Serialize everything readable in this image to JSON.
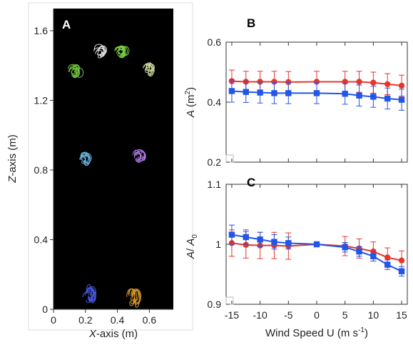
{
  "chart_data": [
    {
      "panel": "A",
      "type": "scatter",
      "xlabel_axis": "X",
      "xlabel_rest": "-axis (m)",
      "ylabel_axis": "Z",
      "ylabel_rest": "-axis (m)",
      "xlim": [
        0,
        0.7
      ],
      "ylim": [
        0,
        1.7
      ],
      "xticks": [
        0,
        0.2,
        0.4,
        0.6
      ],
      "xtick_labels": [
        "0",
        "0.2",
        "0.4",
        "0.6"
      ],
      "yticks": [
        0,
        0.4,
        0.8,
        1.2,
        1.6
      ],
      "ytick_labels": [
        "0",
        "0.4",
        "0.8",
        "1.2",
        "1.6"
      ],
      "background": "#000000",
      "clusters": [
        {
          "x": 0.3,
          "z": 1.48,
          "color": "#e8e8e8"
        },
        {
          "x": 0.43,
          "z": 1.48,
          "color": "#7fdc4a"
        },
        {
          "x": 0.14,
          "z": 1.37,
          "color": "#77cc44"
        },
        {
          "x": 0.6,
          "z": 1.38,
          "color": "#d6e4a4"
        },
        {
          "x": 0.2,
          "z": 0.87,
          "color": "#6fb8e6"
        },
        {
          "x": 0.54,
          "z": 0.88,
          "color": "#b57be8"
        },
        {
          "x": 0.23,
          "z": 0.08,
          "color": "#4a5ce8"
        },
        {
          "x": 0.5,
          "z": 0.08,
          "color": "#e0a030"
        }
      ]
    },
    {
      "panel": "B",
      "type": "line",
      "ylabel_sym": "A",
      "ylabel_unit": "(m",
      "ylabel_sup": "2",
      "ylabel_close": ")",
      "ylim": [
        0.2,
        0.6
      ],
      "yticks": [
        0.2,
        0.4,
        0.6
      ],
      "ytick_labels": [
        "0.2",
        "0.4",
        "0.6"
      ],
      "xlim": [
        -16,
        16
      ],
      "x": [
        -15,
        -12.5,
        -10,
        -7.5,
        -5,
        0,
        5,
        7.5,
        10,
        12.5,
        15
      ],
      "series": [
        {
          "color": "#e8352a",
          "marker": "circle",
          "values": [
            0.47,
            0.468,
            0.468,
            0.468,
            0.467,
            0.468,
            0.468,
            0.468,
            0.465,
            0.46,
            0.455
          ],
          "errors": [
            0.037,
            0.035,
            0.035,
            0.035,
            0.035,
            0.035,
            0.035,
            0.035,
            0.035,
            0.035,
            0.035
          ]
        },
        {
          "color": "#2255e8",
          "marker": "square",
          "values": [
            0.437,
            0.434,
            0.432,
            0.43,
            0.43,
            0.43,
            0.428,
            0.422,
            0.418,
            0.412,
            0.408
          ],
          "errors": [
            0.037,
            0.035,
            0.035,
            0.035,
            0.035,
            0.035,
            0.035,
            0.035,
            0.035,
            0.035,
            0.035
          ]
        }
      ]
    },
    {
      "panel": "C",
      "type": "line",
      "ylabel_sym": "A",
      "ylabel_sep": "/ ",
      "ylabel_sym2": "A",
      "ylabel_sub": "0",
      "xlabel_main": "Wind Speed U (m s",
      "xlabel_sup": "-1",
      "xlabel_close": ")",
      "ylim": [
        0.9,
        1.1
      ],
      "yticks": [
        0.9,
        1.0,
        1.1
      ],
      "ytick_labels": [
        "0.9",
        "1",
        "1.1"
      ],
      "xlim": [
        -16,
        16
      ],
      "xticks": [
        -15,
        -10,
        -5,
        0,
        5,
        10,
        15
      ],
      "xtick_labels": [
        "-15",
        "-10",
        "-5",
        "0",
        "5",
        "10",
        "15"
      ],
      "x": [
        -15,
        -12.5,
        -10,
        -7.5,
        -5,
        0,
        5,
        7.5,
        10,
        12.5,
        15
      ],
      "series": [
        {
          "color": "#e8352a",
          "marker": "circle",
          "values": [
            1.002,
            0.999,
            0.998,
            0.998,
            0.997,
            1.0,
            0.997,
            0.993,
            0.988,
            0.978,
            0.973
          ],
          "errors": [
            0.022,
            0.022,
            0.022,
            0.022,
            0.022,
            0.0,
            0.016,
            0.016,
            0.016,
            0.016,
            0.016
          ]
        },
        {
          "color": "#2255e8",
          "marker": "square",
          "values": [
            1.016,
            1.012,
            1.008,
            1.004,
            1.002,
            1.0,
            0.995,
            0.988,
            0.98,
            0.966,
            0.955
          ],
          "errors": [
            0.016,
            0.012,
            0.012,
            0.012,
            0.01,
            0.0,
            0.008,
            0.008,
            0.008,
            0.008,
            0.008
          ]
        }
      ]
    }
  ]
}
